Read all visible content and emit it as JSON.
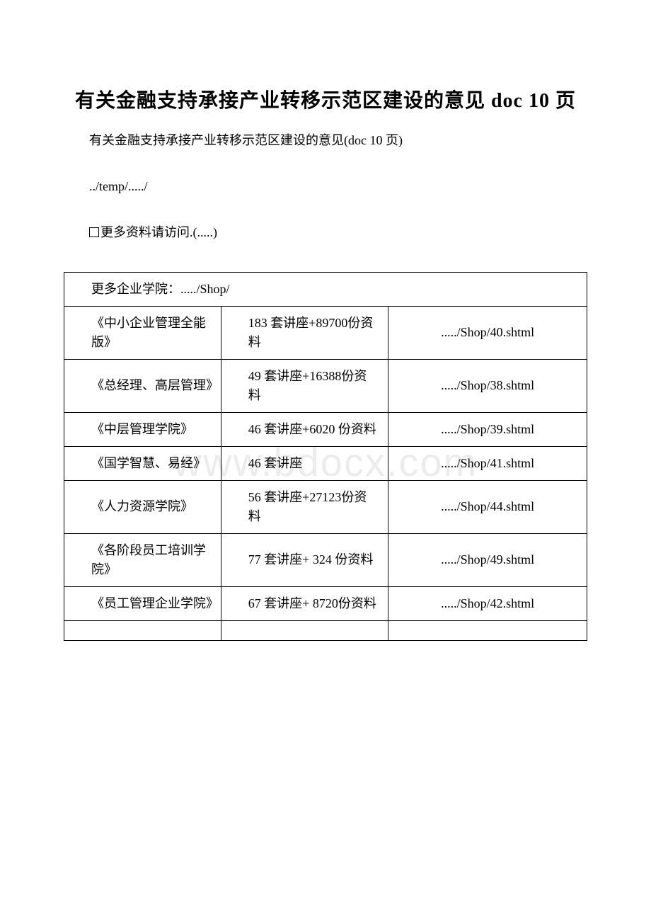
{
  "title": "有关金融支持承接产业转移示范区建设的意见 doc 10 页",
  "subtitle": "有关金融支持承接产业转移示范区建设的意见(doc 10 页)",
  "path_text": "../temp/...../",
  "info_prefix": "更多资料请访问",
  "info_suffix": ".(.....)",
  "table_header": "更多企业学院：...../Shop/",
  "watermark": "www.bdocx.com",
  "rows": [
    {
      "name": "《中小企业管理全能版》",
      "desc": "183 套讲座+89700份资料",
      "link": "...../Shop/40.shtml"
    },
    {
      "name": "《总经理、高层管理》",
      "desc": "49 套讲座+16388份资料",
      "link": "...../Shop/38.shtml"
    },
    {
      "name": "《中层管理学院》",
      "desc": "46 套讲座+6020 份资料",
      "link": "...../Shop/39.shtml"
    },
    {
      "name": "《国学智慧、易经》",
      "desc": "46 套讲座",
      "link": "...../Shop/41.shtml"
    },
    {
      "name": "《人力资源学院》",
      "desc": "56 套讲座+27123份资料",
      "link": "...../Shop/44.shtml"
    },
    {
      "name": "《各阶段员工培训学院》",
      "desc": "77 套讲座+ 324 份资料",
      "link": "...../Shop/49.shtml"
    },
    {
      "name": "《员工管理企业学院》",
      "desc": "67 套讲座+ 8720份资料",
      "link": "...../Shop/42.shtml"
    }
  ],
  "colors": {
    "text": "#000000",
    "background": "#ffffff",
    "border": "#000000",
    "watermark": "rgba(200,200,200,0.35)"
  },
  "typography": {
    "title_fontsize": 28,
    "body_fontsize": 18,
    "font_family_cjk": "SimSun",
    "font_family_latin": "Times New Roman"
  }
}
